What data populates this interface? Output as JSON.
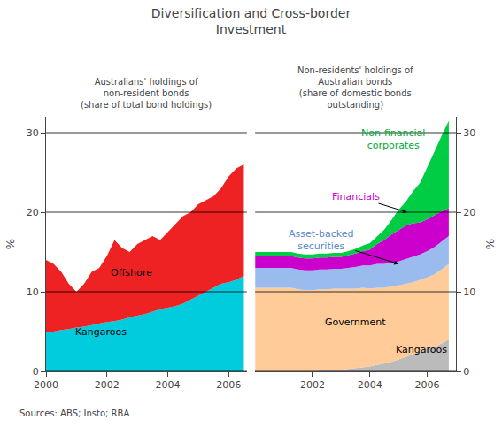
{
  "title": "Diversification and Cross-border\nInvestment",
  "annotations": [
    {
      "text": "Sources: ABS; Insto; RBA"
    }
  ],
  "chart_data": [
    {
      "type": "area",
      "stacked": true,
      "subtitle": "Australians' holdings of\nnon-resident bonds\n(share of total bond holdings)",
      "ylabel": "%",
      "xlim": [
        2000,
        2006.6
      ],
      "xticks": [
        2000,
        2002,
        2004,
        2006
      ],
      "ylim": [
        0,
        32
      ],
      "yticks": [
        0,
        10,
        20,
        30
      ],
      "grid": true,
      "x": [
        2000.0,
        2000.25,
        2000.5,
        2000.75,
        2001.0,
        2001.25,
        2001.5,
        2001.75,
        2002.0,
        2002.25,
        2002.5,
        2002.75,
        2003.0,
        2003.25,
        2003.5,
        2003.75,
        2004.0,
        2004.25,
        2004.5,
        2004.75,
        2005.0,
        2005.25,
        2005.5,
        2005.75,
        2006.0,
        2006.25,
        2006.5
      ],
      "series": [
        {
          "name": "Kangaroos",
          "color": "#00CCDD",
          "values": [
            5.0,
            5.0,
            5.2,
            5.3,
            5.5,
            5.6,
            5.8,
            6.0,
            6.2,
            6.3,
            6.5,
            6.8,
            7.0,
            7.2,
            7.5,
            7.8,
            8.0,
            8.2,
            8.5,
            9.0,
            9.5,
            10.0,
            10.5,
            11.0,
            11.2,
            11.5,
            12.0
          ]
        },
        {
          "name": "Offshore",
          "color": "#EE2222",
          "values": [
            9.0,
            8.5,
            7.3,
            5.7,
            4.5,
            5.4,
            6.7,
            7.0,
            8.3,
            10.2,
            9.0,
            8.2,
            9.0,
            9.3,
            9.5,
            8.7,
            9.5,
            10.3,
            11.0,
            11.0,
            11.5,
            11.5,
            11.5,
            12.0,
            13.3,
            14.0,
            14.0
          ]
        }
      ],
      "annotations": [
        {
          "text": "Kangaroos",
          "x": 2001.8,
          "y": 4.0,
          "color": "black"
        },
        {
          "text": "Offshore",
          "x": 2002.8,
          "y": 11.5,
          "color": "black"
        }
      ]
    },
    {
      "type": "area",
      "stacked": true,
      "subtitle": "Non-residents' holdings of\nAustralian bonds\n(share of domestic bonds\noutstanding)",
      "ylabel": "%",
      "xlim": [
        2000,
        2007.0
      ],
      "xticks": [
        2002,
        2004,
        2006
      ],
      "ylim": [
        0,
        32
      ],
      "yticks": [
        0,
        10,
        20,
        30
      ],
      "grid": true,
      "x": [
        2000.0,
        2000.25,
        2000.5,
        2000.75,
        2001.0,
        2001.25,
        2001.5,
        2001.75,
        2002.0,
        2002.25,
        2002.5,
        2002.75,
        2003.0,
        2003.25,
        2003.5,
        2003.75,
        2004.0,
        2004.25,
        2004.5,
        2004.75,
        2005.0,
        2005.25,
        2005.5,
        2005.75,
        2006.0,
        2006.25,
        2006.5,
        2006.75
      ],
      "series": [
        {
          "name": "Kangaroos",
          "color": "#BBBBBB",
          "values": [
            0.0,
            0.0,
            0.0,
            0.0,
            0.0,
            0.0,
            0.0,
            0.0,
            0.0,
            0.1,
            0.1,
            0.2,
            0.2,
            0.3,
            0.4,
            0.5,
            0.6,
            0.8,
            1.0,
            1.2,
            1.5,
            1.8,
            2.2,
            2.5,
            2.8,
            3.0,
            3.5,
            4.0
          ]
        },
        {
          "name": "Government",
          "color": "#FFCC99",
          "values": [
            10.5,
            10.5,
            10.5,
            10.5,
            10.5,
            10.5,
            10.3,
            10.2,
            10.2,
            10.2,
            10.2,
            10.2,
            10.2,
            10.1,
            10.0,
            10.0,
            9.8,
            9.7,
            9.5,
            9.5,
            9.3,
            9.2,
            9.0,
            9.0,
            9.0,
            9.2,
            9.3,
            9.5
          ]
        },
        {
          "name": "Asset-backed securities",
          "color": "#99BBEE",
          "values": [
            2.5,
            2.5,
            2.5,
            2.5,
            2.5,
            2.5,
            2.5,
            2.5,
            2.5,
            2.5,
            2.5,
            2.5,
            2.5,
            2.6,
            2.7,
            2.8,
            2.9,
            3.0,
            3.0,
            3.0,
            3.0,
            3.1,
            3.2,
            3.2,
            3.3,
            3.4,
            3.5,
            3.5
          ]
        },
        {
          "name": "Financials",
          "color": "#CC00CC",
          "values": [
            1.5,
            1.5,
            1.5,
            1.5,
            1.5,
            1.5,
            1.5,
            1.5,
            1.5,
            1.5,
            1.5,
            1.5,
            1.5,
            1.6,
            1.7,
            1.8,
            2.0,
            2.5,
            3.0,
            3.5,
            4.0,
            4.2,
            4.2,
            4.0,
            4.0,
            4.0,
            3.8,
            3.5
          ]
        },
        {
          "name": "Non-financial corporates",
          "color": "#00CC44",
          "values": [
            0.5,
            0.5,
            0.5,
            0.5,
            0.5,
            0.5,
            0.5,
            0.5,
            0.5,
            0.5,
            0.5,
            0.5,
            0.5,
            0.5,
            0.6,
            0.7,
            0.8,
            1.0,
            1.3,
            1.8,
            2.5,
            3.0,
            4.0,
            5.0,
            6.5,
            8.0,
            9.5,
            11.0
          ]
        }
      ],
      "annotations": [
        {
          "text": "Government",
          "x": 2003.5,
          "y": 5.2,
          "color": "black"
        },
        {
          "text": "Kangaroos",
          "x": 2005.8,
          "y": 1.8,
          "color": "black"
        },
        {
          "text": "Asset-backed\nsecurities",
          "x": 2002.3,
          "y": 16.5,
          "arrow_to": [
            2005.0,
            13.5
          ],
          "color": "#5588CC"
        },
        {
          "text": "Financials",
          "x": 2003.5,
          "y": 22.0,
          "arrow_to": [
            2005.3,
            20.0
          ],
          "color": "#CC00CC"
        },
        {
          "text": "Non-financial\ncorporates",
          "x": 2004.8,
          "y": 27.5,
          "color": "#00AA33"
        }
      ]
    }
  ]
}
